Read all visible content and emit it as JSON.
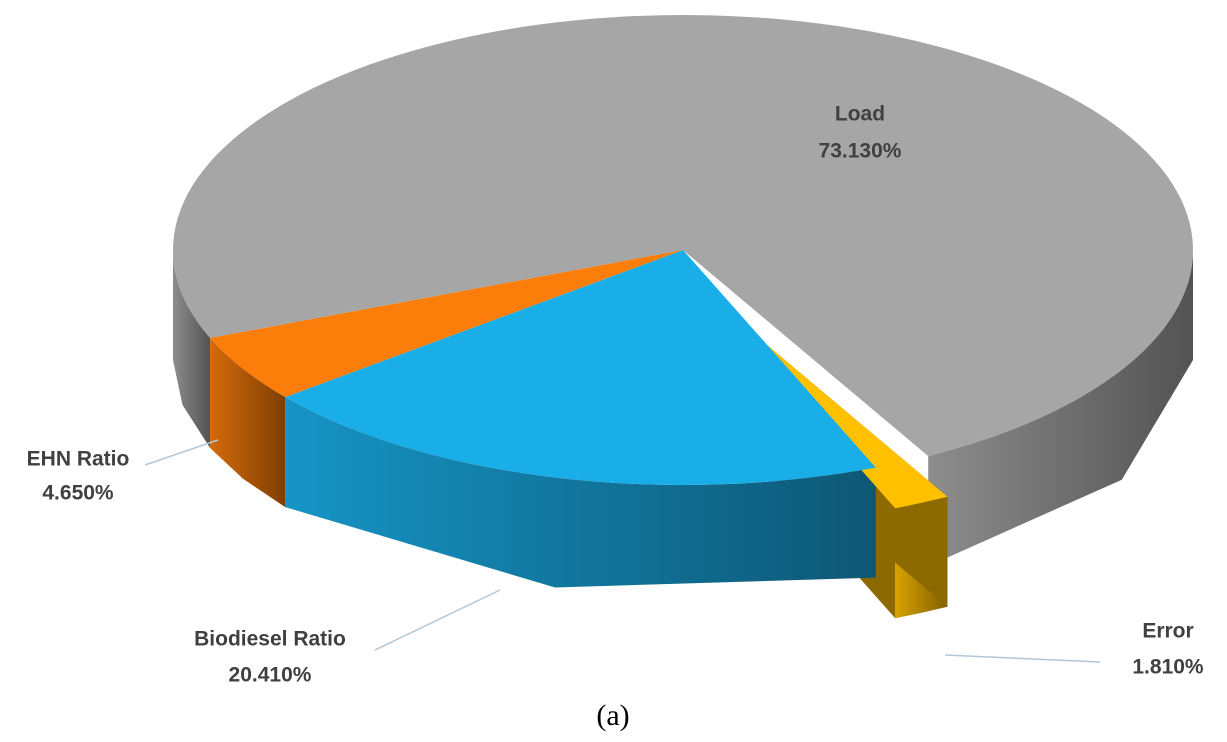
{
  "chart_data": {
    "type": "pie",
    "caption": "(a)",
    "categories": [
      "Load",
      "Error",
      "Biodiesel Ratio",
      "EHN Ratio"
    ],
    "values": [
      73.13,
      1.81,
      20.41,
      4.65
    ],
    "value_labels": [
      "73.130%",
      "1.810%",
      "20.410%",
      "4.650%"
    ],
    "colors": [
      "#a6a6a6",
      "#ffc000",
      "#1aaee8",
      "#fb7d0a"
    ]
  }
}
